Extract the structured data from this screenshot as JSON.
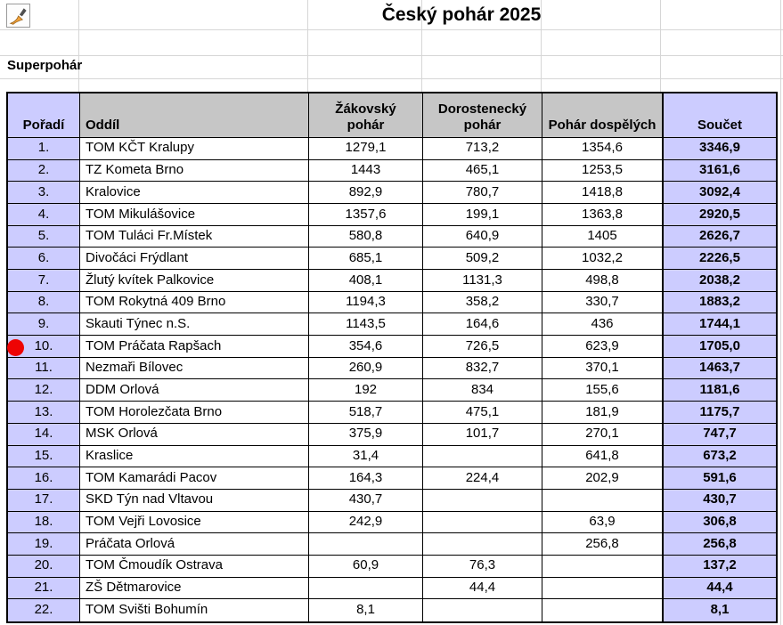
{
  "title": "Český pohár 2025",
  "section_label": "Superpohár",
  "toolbar": {
    "format_painter_icon": "paintbrush"
  },
  "marker": {
    "type": "red-dot",
    "on_row_rank": "10.",
    "color": "#ee0404"
  },
  "colors": {
    "header_bg": "#c6c6c6",
    "accent_bg": "#ccccff",
    "table_border": "#000000",
    "sheet_gridline": "#d6d6d6",
    "marker_red": "#ee0404"
  },
  "table": {
    "headers": [
      "Pořadí",
      "Oddíl",
      "Žákovský\npohár",
      "Dorostenecký\npohár",
      "Pohár dospělých",
      "Součet"
    ],
    "header_keys": [
      "rank",
      "club",
      "zakovsky-pohar",
      "dorostenecky-pohar",
      "pohar-dospelych",
      "soucet"
    ],
    "rows": [
      [
        "1.",
        "TOM KČT Kralupy",
        "1279,1",
        "713,2",
        "1354,6",
        "3346,9"
      ],
      [
        "2.",
        "TZ Kometa Brno",
        "1443",
        "465,1",
        "1253,5",
        "3161,6"
      ],
      [
        "3.",
        "Kralovice",
        "892,9",
        "780,7",
        "1418,8",
        "3092,4"
      ],
      [
        "4.",
        "TOM Mikulášovice",
        "1357,6",
        "199,1",
        "1363,8",
        "2920,5"
      ],
      [
        "5.",
        "TOM Tuláci Fr.Místek",
        "580,8",
        "640,9",
        "1405",
        "2626,7"
      ],
      [
        "6.",
        "Divočáci Frýdlant",
        "685,1",
        "509,2",
        "1032,2",
        "2226,5"
      ],
      [
        "7.",
        "Žlutý kvítek Palkovice",
        "408,1",
        "1131,3",
        "498,8",
        "2038,2"
      ],
      [
        "8.",
        "TOM Rokytná 409 Brno",
        "1194,3",
        "358,2",
        "330,7",
        "1883,2"
      ],
      [
        "9.",
        "Skauti Týnec n.S.",
        "1143,5",
        "164,6",
        "436",
        "1744,1"
      ],
      [
        "10.",
        "TOM Práčata Rapšach",
        "354,6",
        "726,5",
        "623,9",
        "1705,0"
      ],
      [
        "11.",
        "Nezmaři Bílovec",
        "260,9",
        "832,7",
        "370,1",
        "1463,7"
      ],
      [
        "12.",
        "DDM Orlová",
        "192",
        "834",
        "155,6",
        "1181,6"
      ],
      [
        "13.",
        "TOM Horolezčata Brno",
        "518,7",
        "475,1",
        "181,9",
        "1175,7"
      ],
      [
        "14.",
        "MSK Orlová",
        "375,9",
        "101,7",
        "270,1",
        "747,7"
      ],
      [
        "15.",
        "Kraslice",
        "31,4",
        "",
        "641,8",
        "673,2"
      ],
      [
        "16.",
        "TOM Kamarádi Pacov",
        "164,3",
        "224,4",
        "202,9",
        "591,6"
      ],
      [
        "17.",
        "SKD Týn nad Vltavou",
        "430,7",
        "",
        "",
        "430,7"
      ],
      [
        "18.",
        "TOM Vejři Lovosice",
        "242,9",
        "",
        "63,9",
        "306,8"
      ],
      [
        "19.",
        "Práčata Orlová",
        "",
        "",
        "256,8",
        "256,8"
      ],
      [
        "20.",
        "TOM Čmoudík Ostrava",
        "60,9",
        "76,3",
        "",
        "137,2"
      ],
      [
        "21.",
        "ZŠ Dětmarovice",
        "",
        "44,4",
        "",
        "44,4"
      ],
      [
        "22.",
        "TOM Svišti Bohumín",
        "8,1",
        "",
        "",
        "8,1"
      ]
    ]
  }
}
